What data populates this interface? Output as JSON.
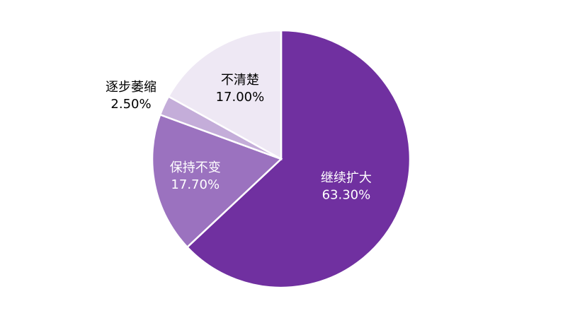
{
  "chart_data": {
    "type": "pie",
    "title": "",
    "unit": "%",
    "slices": [
      {
        "name": "继续扩大",
        "value": 63.3,
        "label": "63.30%",
        "color": "#7030A0",
        "text_color": "#ffffff"
      },
      {
        "name": "保持不变",
        "value": 17.7,
        "label": "17.70%",
        "color": "#9B72BF",
        "text_color": "#ffffff"
      },
      {
        "name": "逐步萎缩",
        "value": 2.5,
        "label": "2.50%",
        "color": "#C4ADD9",
        "text_color": "#000000"
      },
      {
        "name": "不清楚",
        "value": 17.0,
        "label": "17.00%",
        "color": "#EEE8F4",
        "text_color": "#000000"
      }
    ]
  }
}
